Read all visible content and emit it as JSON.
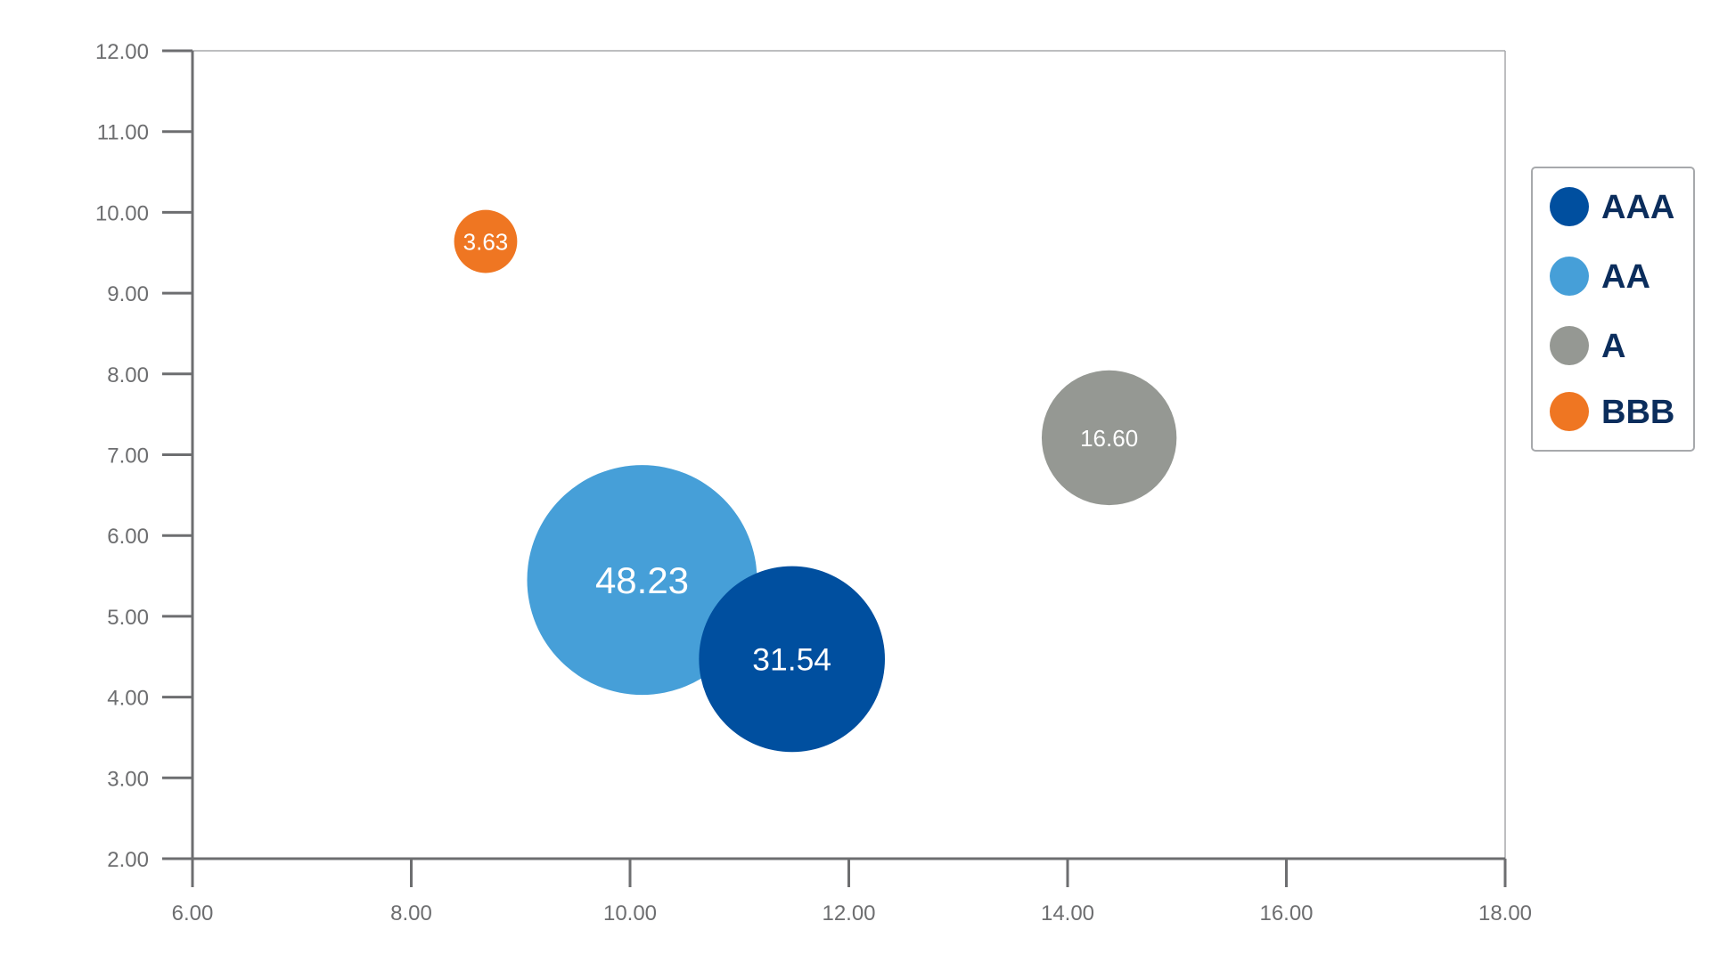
{
  "chart_data": {
    "type": "scatter",
    "variant": "bubble",
    "title": "",
    "xlabel": "",
    "ylabel": "",
    "xlim": [
      6,
      18
    ],
    "ylim": [
      2,
      12
    ],
    "x_ticks": [
      "6.00",
      "8.00",
      "10.00",
      "12.00",
      "14.00",
      "16.00",
      "18.00"
    ],
    "y_ticks": [
      "2.00",
      "3.00",
      "4.00",
      "5.00",
      "6.00",
      "7.00",
      "8.00",
      "9.00",
      "10.00",
      "11.00",
      "12.00"
    ],
    "grid": false,
    "legend_position": "right",
    "series": [
      {
        "name": "AAA",
        "color": "#004f9f",
        "x": 11.48,
        "y": 4.47,
        "size": 31.54,
        "label": "31.54"
      },
      {
        "name": "AA",
        "color": "#469fd8",
        "x": 10.11,
        "y": 5.45,
        "size": 48.23,
        "label": "48.23"
      },
      {
        "name": "A",
        "color": "#959893",
        "x": 14.38,
        "y": 7.21,
        "size": 16.6,
        "label": "16.60"
      },
      {
        "name": "BBB",
        "color": "#ef7622",
        "x": 8.68,
        "y": 9.64,
        "size": 3.63,
        "label": "3.63"
      }
    ],
    "axis_color": "#6d6e70",
    "legend_text_color": "#0b2d5c"
  }
}
